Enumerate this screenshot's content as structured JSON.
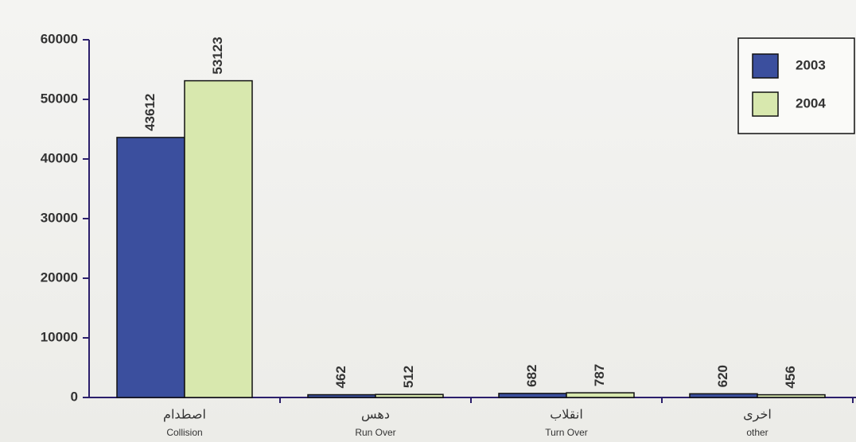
{
  "chart_data": {
    "type": "bar",
    "categories": [
      "Collision",
      "Run Over",
      "Turn Over",
      "other"
    ],
    "categories_ar": [
      "اصطدام",
      "دهس",
      "انقلاب",
      "اخرى"
    ],
    "series": [
      {
        "name": "2003",
        "color": "#3b4f9e",
        "values": [
          43612,
          462,
          682,
          620
        ]
      },
      {
        "name": "2004",
        "color": "#d8e8ae",
        "values": [
          53123,
          512,
          787,
          456
        ]
      }
    ],
    "ylim": [
      0,
      60000
    ],
    "yticks": [
      0,
      10000,
      20000,
      30000,
      40000,
      50000,
      60000
    ],
    "legend": "upper right"
  }
}
